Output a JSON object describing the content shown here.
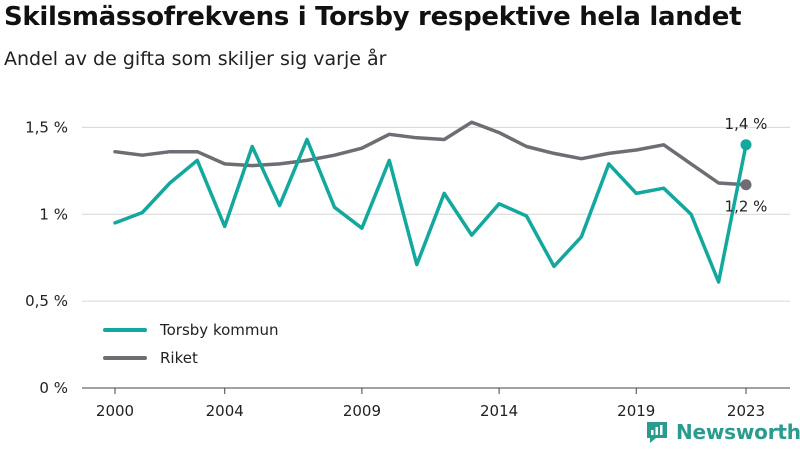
{
  "header": {
    "title": "Skilsmässofrekvens i Torsby respektive hela landet",
    "subtitle": "Andel av de gifta som skiljer sig varje år"
  },
  "brand": {
    "name": "Newsworthy",
    "color": "#2a9c8f"
  },
  "chart_data": {
    "type": "line",
    "x": [
      2000,
      2001,
      2002,
      2003,
      2004,
      2005,
      2006,
      2007,
      2008,
      2009,
      2010,
      2011,
      2012,
      2013,
      2014,
      2015,
      2016,
      2017,
      2018,
      2019,
      2020,
      2021,
      2022,
      2023
    ],
    "x_ticks": [
      2000,
      2004,
      2009,
      2014,
      2019,
      2023
    ],
    "x_tick_labels": [
      "2000",
      "2004",
      "2009",
      "2014",
      "2019",
      "2023"
    ],
    "ylim": [
      0,
      1.6
    ],
    "y_ticks": [
      0,
      0.5,
      1,
      1.5
    ],
    "y_tick_labels": [
      "0 %",
      "0,5 %",
      "1 %",
      "1,5 %"
    ],
    "grid": "horizontal",
    "legend_position": "bottom-left",
    "series": [
      {
        "name": "Torsby kommun",
        "color": "#13a89e",
        "values": [
          0.95,
          1.01,
          1.18,
          1.31,
          0.93,
          1.39,
          1.05,
          1.43,
          1.04,
          0.92,
          1.31,
          0.71,
          1.12,
          0.88,
          1.06,
          0.99,
          0.7,
          0.87,
          1.29,
          1.12,
          1.15,
          1.0,
          0.61,
          1.4
        ],
        "end_label": "1,4 %"
      },
      {
        "name": "Riket",
        "color": "#6e6d74",
        "values": [
          1.36,
          1.34,
          1.36,
          1.36,
          1.29,
          1.28,
          1.29,
          1.31,
          1.34,
          1.38,
          1.46,
          1.44,
          1.43,
          1.53,
          1.47,
          1.39,
          1.35,
          1.32,
          1.35,
          1.37,
          1.4,
          1.29,
          1.18,
          1.17
        ],
        "end_label": "1,2 %"
      }
    ]
  }
}
